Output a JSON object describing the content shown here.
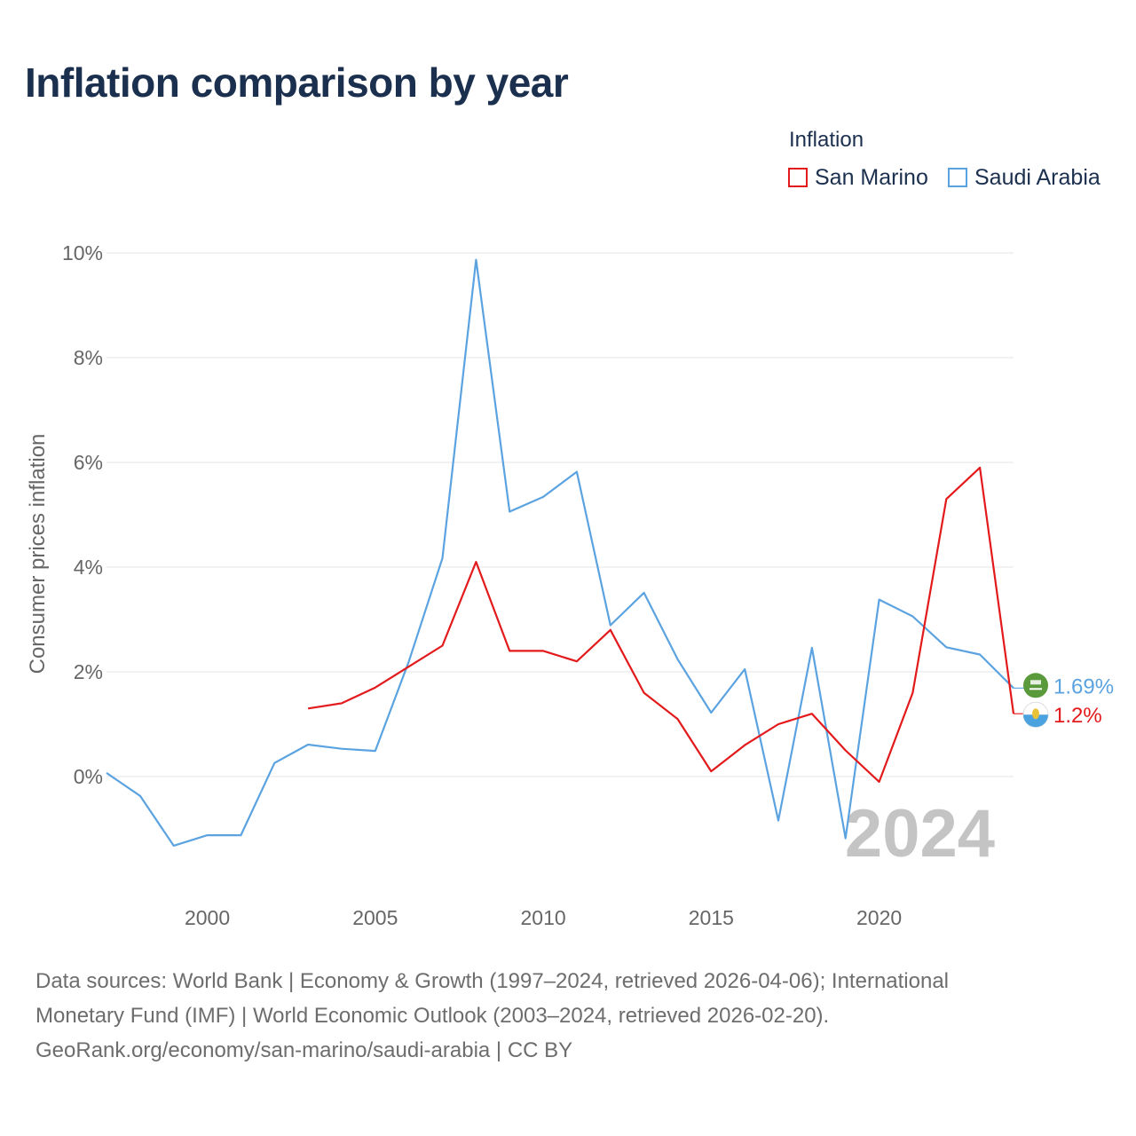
{
  "title": "Inflation comparison by year",
  "legend": {
    "title": "Inflation",
    "items": [
      {
        "label": "San Marino",
        "color": "#e31a1c"
      },
      {
        "label": "Saudi Arabia",
        "color": "#5ba3e0"
      }
    ]
  },
  "chart_data": {
    "type": "line",
    "title": "Inflation comparison by year",
    "xlabel": "",
    "ylabel": "Consumer prices inflation",
    "xlim": [
      1997,
      2024
    ],
    "ylim": [
      -2.3,
      10
    ],
    "x_ticks": [
      2000,
      2005,
      2010,
      2015,
      2020
    ],
    "y_ticks": [
      0,
      2,
      4,
      6,
      8,
      10
    ],
    "y_tick_labels": [
      "0%",
      "2%",
      "4%",
      "6%",
      "8%",
      "10%"
    ],
    "grid": true,
    "year_watermark": "2024",
    "series": [
      {
        "name": "Saudi Arabia",
        "color": "#5ba3e0",
        "x": [
          1997,
          1998,
          1999,
          2000,
          2001,
          2002,
          2003,
          2004,
          2005,
          2006,
          2007,
          2008,
          2009,
          2010,
          2011,
          2012,
          2013,
          2014,
          2015,
          2016,
          2017,
          2018,
          2019,
          2020,
          2021,
          2022,
          2023,
          2024
        ],
        "values": [
          0.07,
          -0.37,
          -1.32,
          -1.12,
          -1.12,
          0.26,
          0.61,
          0.53,
          0.49,
          2.2,
          4.17,
          9.87,
          5.06,
          5.34,
          5.82,
          2.89,
          3.51,
          2.24,
          1.22,
          2.05,
          -0.84,
          2.46,
          -1.18,
          3.38,
          3.06,
          2.47,
          2.33,
          1.69
        ],
        "end_label": "1.69%"
      },
      {
        "name": "San Marino",
        "color": "#e31a1c",
        "x": [
          2003,
          2004,
          2005,
          2006,
          2007,
          2008,
          2009,
          2010,
          2011,
          2012,
          2013,
          2014,
          2015,
          2016,
          2017,
          2018,
          2019,
          2020,
          2021,
          2022,
          2023,
          2024
        ],
        "values": [
          1.3,
          1.4,
          1.7,
          2.1,
          2.5,
          4.1,
          2.4,
          2.4,
          2.2,
          2.8,
          1.6,
          1.1,
          0.1,
          0.6,
          1.0,
          1.2,
          0.5,
          -0.1,
          1.6,
          5.3,
          5.9,
          1.2
        ],
        "end_label": "1.2%"
      }
    ]
  },
  "sources": {
    "line1": "Data sources: World Bank | Economy & Growth (1997–2024, retrieved 2026-04-06); International",
    "line2": "Monetary Fund (IMF) | World Economic Outlook (2003–2024, retrieved 2026-02-20).",
    "line3": "GeoRank.org/economy/san-marino/saudi-arabia | CC BY"
  }
}
